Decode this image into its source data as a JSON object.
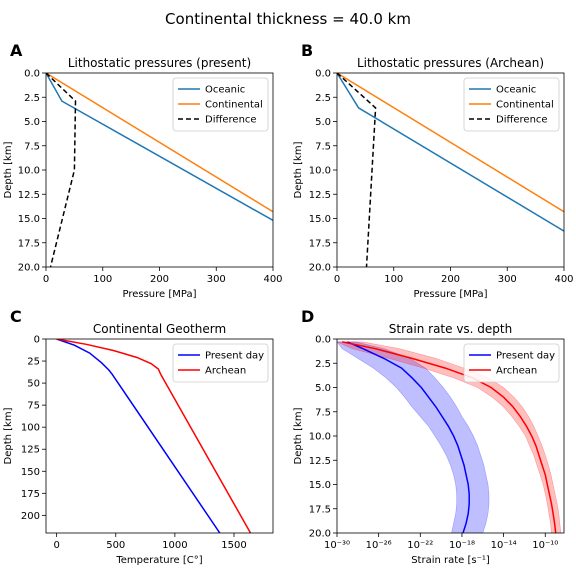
{
  "figure": {
    "title": "Continental thickness = 40.0 km"
  },
  "chart_data": [
    {
      "panel_label": "A",
      "type": "line",
      "title": "Lithostatic pressures (present)",
      "xlabel": "Pressure [MPa]",
      "ylabel": "Depth [km]",
      "xlim": [
        0,
        400
      ],
      "ylim": [
        0,
        20
      ],
      "y_inverted": true,
      "x_scale": "linear",
      "xticks": [
        "0",
        "100",
        "200",
        "300",
        "400"
      ],
      "yticks": [
        "0.0",
        "2.5",
        "5.0",
        "7.5",
        "10.0",
        "12.5",
        "15.0",
        "17.5",
        "20.0"
      ],
      "xtick_values": [
        0,
        100,
        200,
        300,
        400
      ],
      "ytick_values": [
        0,
        2.5,
        5,
        7.5,
        10,
        12.5,
        15,
        17.5,
        20
      ],
      "legend": "top-right",
      "series": [
        {
          "name": "Oceanic",
          "color": "#1f77b4",
          "dash": "solid",
          "x": [
            0,
            28,
            400
          ],
          "y": [
            0,
            2.9,
            15.2
          ]
        },
        {
          "name": "Continental",
          "color": "#ff7f0e",
          "dash": "solid",
          "x": [
            0,
            400
          ],
          "y": [
            0,
            14.3
          ]
        },
        {
          "name": "Difference",
          "color": "#000000",
          "dash": "dashed",
          "x": [
            0,
            52,
            50,
            8
          ],
          "y": [
            0,
            2.9,
            10,
            20
          ]
        }
      ]
    },
    {
      "panel_label": "B",
      "type": "line",
      "title": "Lithostatic pressures (Archean)",
      "xlabel": "Pressure [MPa]",
      "ylabel": "Depth [km]",
      "xlim": [
        0,
        400
      ],
      "ylim": [
        0,
        20
      ],
      "y_inverted": true,
      "x_scale": "linear",
      "xticks": [
        "0",
        "100",
        "200",
        "300",
        "400"
      ],
      "yticks": [
        "0.0",
        "2.5",
        "5.0",
        "7.5",
        "10.0",
        "12.5",
        "15.0",
        "17.5",
        "20.0"
      ],
      "xtick_values": [
        0,
        100,
        200,
        300,
        400
      ],
      "ytick_values": [
        0,
        2.5,
        5,
        7.5,
        10,
        12.5,
        15,
        17.5,
        20
      ],
      "legend": "top-right",
      "series": [
        {
          "name": "Oceanic",
          "color": "#1f77b4",
          "dash": "solid",
          "x": [
            0,
            38,
            400
          ],
          "y": [
            0,
            3.6,
            16.3
          ]
        },
        {
          "name": "Continental",
          "color": "#ff7f0e",
          "dash": "solid",
          "x": [
            0,
            400
          ],
          "y": [
            0,
            14.3
          ]
        },
        {
          "name": "Difference",
          "color": "#000000",
          "dash": "dashed",
          "x": [
            0,
            68,
            52
          ],
          "y": [
            0,
            3.6,
            20
          ]
        }
      ]
    },
    {
      "panel_label": "C",
      "type": "line",
      "title": "Continental Geotherm",
      "xlabel": "Temperature [C°]",
      "ylabel": "Depth [km]",
      "xlim": [
        -90,
        1830
      ],
      "ylim": [
        0,
        220
      ],
      "y_inverted": true,
      "x_scale": "linear",
      "xticks": [
        "0",
        "500",
        "1000",
        "1500"
      ],
      "yticks": [
        "0",
        "25",
        "50",
        "75",
        "100",
        "125",
        "150",
        "175",
        "200"
      ],
      "xtick_values": [
        0,
        500,
        1000,
        1500
      ],
      "ytick_values": [
        0,
        25,
        50,
        75,
        100,
        125,
        150,
        175,
        200
      ],
      "legend": "top-right",
      "series": [
        {
          "name": "Present day",
          "color": "#0000ff",
          "dash": "solid",
          "x": [
            0,
            150,
            280,
            380,
            440,
            470,
            1380
          ],
          "y": [
            0,
            7,
            16,
            27,
            35,
            40,
            220
          ]
        },
        {
          "name": "Archean",
          "color": "#ff0000",
          "dash": "solid",
          "x": [
            0,
            250,
            480,
            680,
            800,
            860,
            880,
            1640
          ],
          "y": [
            0,
            6,
            13,
            21,
            28,
            34,
            40,
            220
          ]
        }
      ]
    },
    {
      "panel_label": "D",
      "type": "line",
      "title": "Strain rate vs. depth",
      "xlabel": "Strain rate [s⁻¹]",
      "ylabel": "Depth [km]",
      "xlim": [
        -30,
        -8.2
      ],
      "ylim": [
        0,
        20
      ],
      "y_inverted": true,
      "x_scale": "log10",
      "xticks": [
        "10⁻³⁰",
        "10⁻²⁶",
        "10⁻²²",
        "10⁻¹⁸",
        "10⁻¹⁴",
        "10⁻¹⁰"
      ],
      "xtick_values": [
        -30,
        -26,
        -22,
        -18,
        -14,
        -10
      ],
      "yticks": [
        "0.0",
        "2.5",
        "5.0",
        "7.5",
        "10.0",
        "12.5",
        "15.0",
        "17.5",
        "20.0"
      ],
      "ytick_values": [
        0,
        2.5,
        5,
        7.5,
        10,
        12.5,
        15,
        17.5,
        20
      ],
      "legend": "top-right",
      "series": [
        {
          "name": "Present day",
          "color": "#0000ff",
          "dash": "solid",
          "y": [
            0.3,
            1,
            2,
            3,
            4,
            5,
            6,
            7,
            8,
            9,
            10,
            11,
            12,
            13,
            14,
            15,
            16,
            17,
            18,
            19,
            20
          ],
          "x": [
            -29,
            -27.5,
            -25.5,
            -23.8,
            -22.8,
            -21.9,
            -21.2,
            -20.5,
            -19.9,
            -19.3,
            -18.8,
            -18.4,
            -18.1,
            -17.8,
            -17.6,
            -17.4,
            -17.3,
            -17.3,
            -17.4,
            -17.6,
            -17.9
          ],
          "x_lo": [
            -30,
            -29.5,
            -28,
            -26.5,
            -25.3,
            -24.3,
            -23.5,
            -22.8,
            -22.0,
            -21.2,
            -20.6,
            -20.0,
            -19.5,
            -19.1,
            -18.8,
            -18.6,
            -18.5,
            -18.5,
            -18.6,
            -18.8,
            -19.0
          ],
          "x_hi": [
            -28.2,
            -25.5,
            -23.0,
            -21.5,
            -20.6,
            -19.8,
            -19.1,
            -18.5,
            -18.0,
            -17.4,
            -16.9,
            -16.5,
            -16.2,
            -15.9,
            -15.7,
            -15.5,
            -15.4,
            -15.4,
            -15.5,
            -15.7,
            -16.0
          ]
        },
        {
          "name": "Archean",
          "color": "#ff0000",
          "dash": "solid",
          "y": [
            0.3,
            1,
            2,
            3,
            4,
            5,
            6,
            7,
            8,
            9,
            10,
            11,
            12,
            13,
            14,
            15,
            16,
            17,
            18,
            19,
            20
          ],
          "x": [
            -29.5,
            -26.3,
            -22.8,
            -19.6,
            -17.0,
            -15.2,
            -14.0,
            -13.1,
            -12.4,
            -11.8,
            -11.3,
            -10.9,
            -10.6,
            -10.3,
            -10.0,
            -9.8,
            -9.6,
            -9.4,
            -9.25,
            -9.1,
            -9.0
          ],
          "x_lo": [
            -30,
            -28.5,
            -25.0,
            -21.7,
            -18.8,
            -16.5,
            -15.1,
            -14.0,
            -13.2,
            -12.5,
            -11.9,
            -11.5,
            -11.1,
            -10.8,
            -10.5,
            -10.2,
            -10.0,
            -9.8,
            -9.65,
            -9.5,
            -9.4
          ],
          "x_hi": [
            -27.5,
            -24.0,
            -20.5,
            -17.8,
            -15.5,
            -14.0,
            -13.0,
            -12.2,
            -11.6,
            -11.1,
            -10.7,
            -10.3,
            -10.0,
            -9.7,
            -9.45,
            -9.25,
            -9.05,
            -8.85,
            -8.7,
            -8.6,
            -8.5
          ]
        }
      ]
    }
  ]
}
